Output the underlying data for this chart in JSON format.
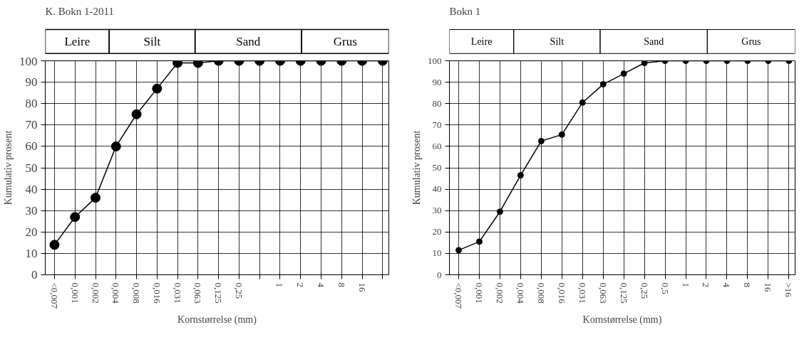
{
  "chart_data": [
    {
      "type": "line",
      "title": "K. Bokn 1-2011",
      "xlabel": "Kornstørrelse (mm)",
      "ylabel": "Kumulativ prosent",
      "categories": [
        "<0,007",
        "0,001",
        "0,002",
        "0,004",
        "0,008",
        "0,016",
        "0,031",
        "0,063",
        "0,125",
        "0,25",
        null,
        "1",
        "2",
        "4",
        "8",
        "16",
        null
      ],
      "values": [
        14,
        27,
        36,
        60,
        75,
        87,
        99,
        99,
        100,
        100,
        100,
        100,
        100,
        100,
        100,
        100,
        100
      ],
      "color": "#000000",
      "marker": "circle",
      "ylim": [
        0,
        100
      ],
      "yticks": [
        0,
        10,
        20,
        30,
        40,
        50,
        60,
        70,
        80,
        90,
        100
      ],
      "grid": true,
      "annotations": [
        "Leire",
        "Silt",
        "Sand",
        "Grus"
      ]
    },
    {
      "type": "line",
      "title": "Bokn 1",
      "xlabel": "Kornstørrelse (mm)",
      "ylabel": "Kumulativ prosent",
      "categories": [
        "<0,007",
        "0,001",
        "0,002",
        "0,004",
        "0,008",
        "0,016",
        "0,031",
        "0,063",
        "0,125",
        "0,25",
        "0,5",
        "1",
        "2",
        "4",
        "8",
        "16",
        ">16"
      ],
      "values": [
        11.5,
        15.5,
        29.5,
        46.5,
        62.5,
        65.5,
        80.5,
        89,
        94,
        99,
        100,
        100,
        100,
        100,
        100,
        100,
        100
      ],
      "color": "#000000",
      "marker": "circle",
      "ylim": [
        0,
        100
      ],
      "yticks": [
        0,
        10,
        20,
        30,
        40,
        50,
        60,
        70,
        80,
        90,
        100
      ],
      "grid": true,
      "annotations": [
        "Leire",
        "Silt",
        "Sand",
        "Grus"
      ]
    }
  ]
}
